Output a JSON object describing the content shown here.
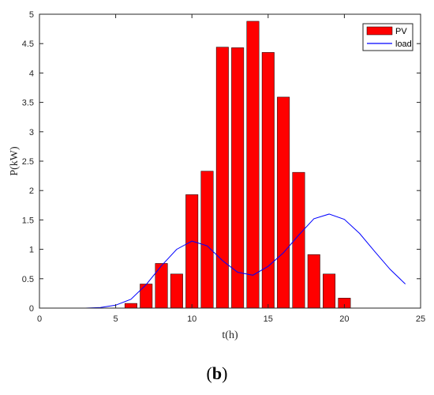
{
  "chart_data": {
    "type": "bar",
    "xlabel": "t(h)",
    "ylabel": "P(kW)",
    "xlim": [
      0,
      25
    ],
    "ylim": [
      0,
      5
    ],
    "xticks": [
      0,
      5,
      10,
      15,
      20,
      25
    ],
    "yticks": [
      0,
      0.5,
      1,
      1.5,
      2,
      2.5,
      3,
      3.5,
      4,
      4.5,
      5
    ],
    "grid": false,
    "legend_position": "top-right",
    "series": [
      {
        "name": "PV",
        "type": "bar",
        "color": "#ff0000",
        "x": [
          6,
          7,
          8,
          9,
          10,
          11,
          12,
          13,
          14,
          15,
          16,
          17,
          18,
          19,
          20
        ],
        "values": [
          0.08,
          0.41,
          0.76,
          0.58,
          1.93,
          2.33,
          4.44,
          4.43,
          4.88,
          4.35,
          3.59,
          2.31,
          0.91,
          0.58,
          0.17
        ]
      },
      {
        "name": "load",
        "type": "line",
        "color": "#0000ff",
        "x": [
          0,
          1,
          2,
          3,
          4,
          5,
          6,
          7,
          8,
          9,
          10,
          11,
          12,
          13,
          14,
          15,
          16,
          17,
          18,
          19,
          20,
          21,
          22,
          23,
          24
        ],
        "values": [
          0,
          0,
          0,
          0,
          0.01,
          0.05,
          0.15,
          0.4,
          0.72,
          1.0,
          1.14,
          1.06,
          0.81,
          0.61,
          0.56,
          0.71,
          0.94,
          1.24,
          1.52,
          1.6,
          1.51,
          1.27,
          0.96,
          0.66,
          0.41
        ]
      }
    ]
  },
  "panel_label": "(b)",
  "panel_label_parts": {
    "open": "(",
    "letter": "b",
    "close": ")"
  }
}
